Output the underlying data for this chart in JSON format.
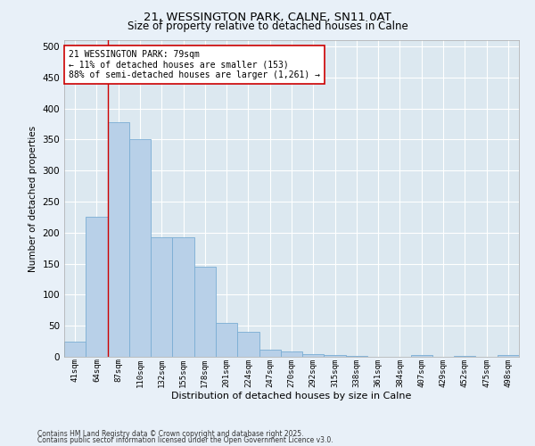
{
  "title": "21, WESSINGTON PARK, CALNE, SN11 0AT",
  "subtitle": "Size of property relative to detached houses in Calne",
  "xlabel": "Distribution of detached houses by size in Calne",
  "ylabel": "Number of detached properties",
  "categories": [
    "41sqm",
    "64sqm",
    "87sqm",
    "110sqm",
    "132sqm",
    "155sqm",
    "178sqm",
    "201sqm",
    "224sqm",
    "247sqm",
    "270sqm",
    "292sqm",
    "315sqm",
    "338sqm",
    "361sqm",
    "384sqm",
    "407sqm",
    "429sqm",
    "452sqm",
    "475sqm",
    "498sqm"
  ],
  "values": [
    25,
    225,
    378,
    350,
    192,
    192,
    145,
    55,
    40,
    12,
    8,
    5,
    3,
    1,
    0,
    0,
    3,
    0,
    1,
    0,
    3
  ],
  "bar_color": "#b8d0e8",
  "bar_edge_color": "#7aadd4",
  "vline_color": "#cc0000",
  "annotation_line1": "21 WESSINGTON PARK: 79sqm",
  "annotation_line2": "← 11% of detached houses are smaller (153)",
  "annotation_line3": "88% of semi-detached houses are larger (1,261) →",
  "annotation_box_color": "#ffffff",
  "annotation_box_edge": "#cc0000",
  "ylim": [
    0,
    510
  ],
  "yticks": [
    0,
    50,
    100,
    150,
    200,
    250,
    300,
    350,
    400,
    450,
    500
  ],
  "bg_color": "#dce8f0",
  "grid_color": "#ffffff",
  "fig_bg_color": "#e8f0f8",
  "footer1": "Contains HM Land Registry data © Crown copyright and database right 2025.",
  "footer2": "Contains public sector information licensed under the Open Government Licence v3.0."
}
